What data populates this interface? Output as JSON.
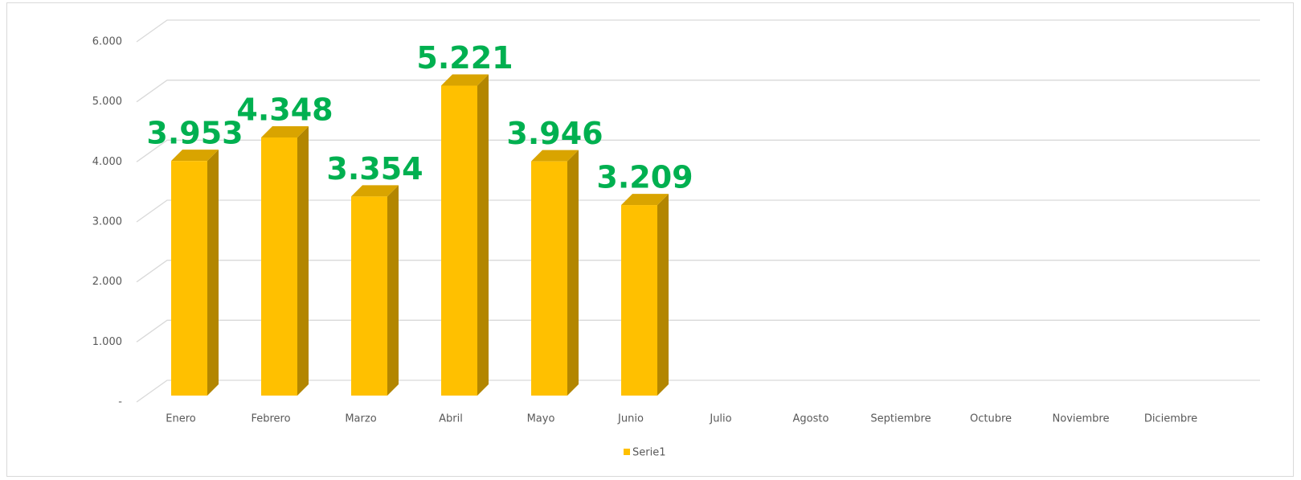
{
  "chart_data": {
    "type": "bar3d",
    "categories": [
      "Enero",
      "Febrero",
      "Marzo",
      "Abril",
      "Mayo",
      "Junio",
      "Julio",
      "Agosto",
      "Septiembre",
      "Octubre",
      "Noviembre",
      "Diciembre"
    ],
    "series": [
      {
        "name": "Serie1",
        "color": "#ffc000",
        "values": [
          3953,
          4348,
          3354,
          5221,
          3946,
          3209,
          null,
          null,
          null,
          null,
          null,
          null
        ],
        "value_labels": [
          "3.953",
          "4.348",
          "3.354",
          "5.221",
          "3.946",
          "3.209",
          null,
          null,
          null,
          null,
          null,
          null
        ]
      }
    ],
    "ylim": [
      0,
      6000
    ],
    "yticks": [
      {
        "value": 0,
        "label": "-"
      },
      {
        "value": 1000,
        "label": "1.000"
      },
      {
        "value": 2000,
        "label": "2.000"
      },
      {
        "value": 3000,
        "label": "3.000"
      },
      {
        "value": 4000,
        "label": "4.000"
      },
      {
        "value": 5000,
        "label": "5.000"
      },
      {
        "value": 6000,
        "label": "6.000"
      }
    ],
    "grid": true,
    "legend": "bottom",
    "value_label_color": "#00b050"
  }
}
